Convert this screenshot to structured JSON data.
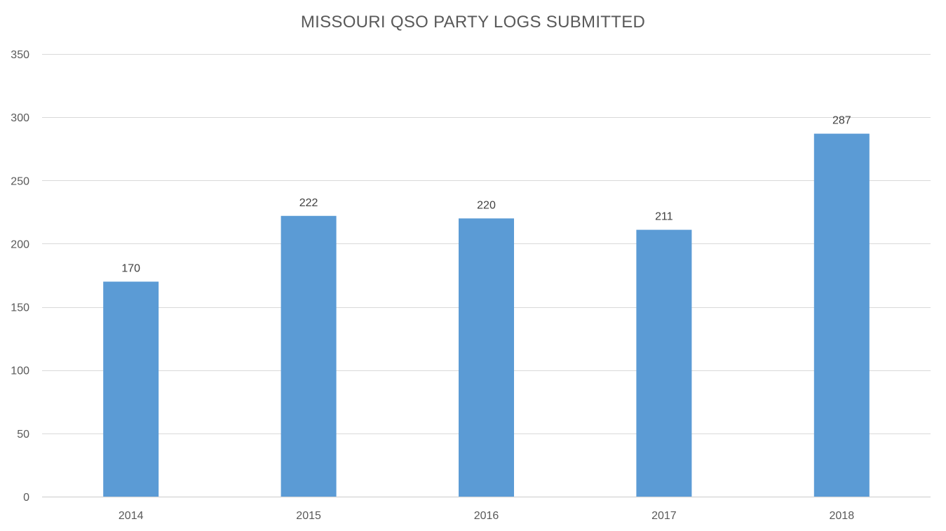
{
  "chart_data": {
    "type": "bar",
    "title": "MISSOURI QSO PARTY LOGS SUBMITTED",
    "categories": [
      "2014",
      "2015",
      "2016",
      "2017",
      "2018"
    ],
    "values": [
      170,
      222,
      220,
      211,
      287
    ],
    "data_labels": [
      "170",
      "222",
      "220",
      "211",
      "287"
    ],
    "ylim": [
      0,
      350
    ],
    "yticks": [
      0,
      50,
      100,
      150,
      200,
      250,
      300,
      350
    ],
    "ytick_labels": [
      "0",
      "50",
      "100",
      "150",
      "200",
      "250",
      "300",
      "350"
    ],
    "xlabel": "",
    "ylabel": "",
    "grid": true,
    "legend": "none",
    "bar_color": "#5B9BD5",
    "grid_color": "#D9D9D9"
  }
}
